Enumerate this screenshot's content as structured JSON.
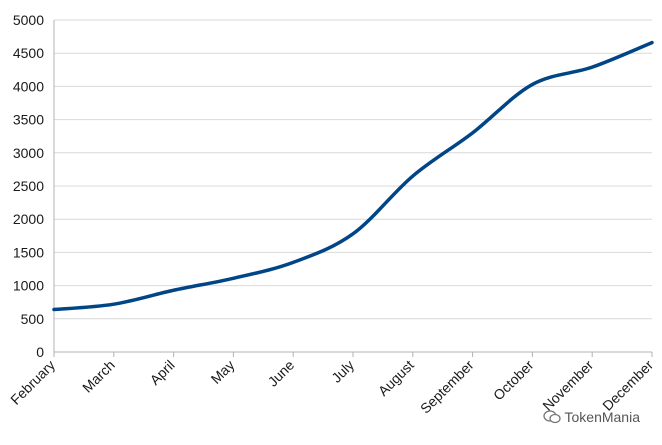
{
  "chart_data": {
    "type": "line",
    "categories": [
      "February",
      "March",
      "April",
      "May",
      "June",
      "July",
      "August",
      "September",
      "October",
      "November",
      "December"
    ],
    "series": [
      {
        "values": [
          640,
          720,
          930,
          1110,
          1350,
          1780,
          2650,
          3300,
          4030,
          4290,
          4660
        ]
      }
    ],
    "ylim": [
      0,
      5000
    ],
    "yticks": [
      0,
      500,
      1000,
      1500,
      2000,
      2500,
      3000,
      3500,
      4000,
      4500,
      5000
    ],
    "grid": true,
    "legend": "none",
    "line_color": "#004586",
    "smooth": true
  },
  "watermark": {
    "text": "TokenMania",
    "icon": "wechat-icon"
  }
}
